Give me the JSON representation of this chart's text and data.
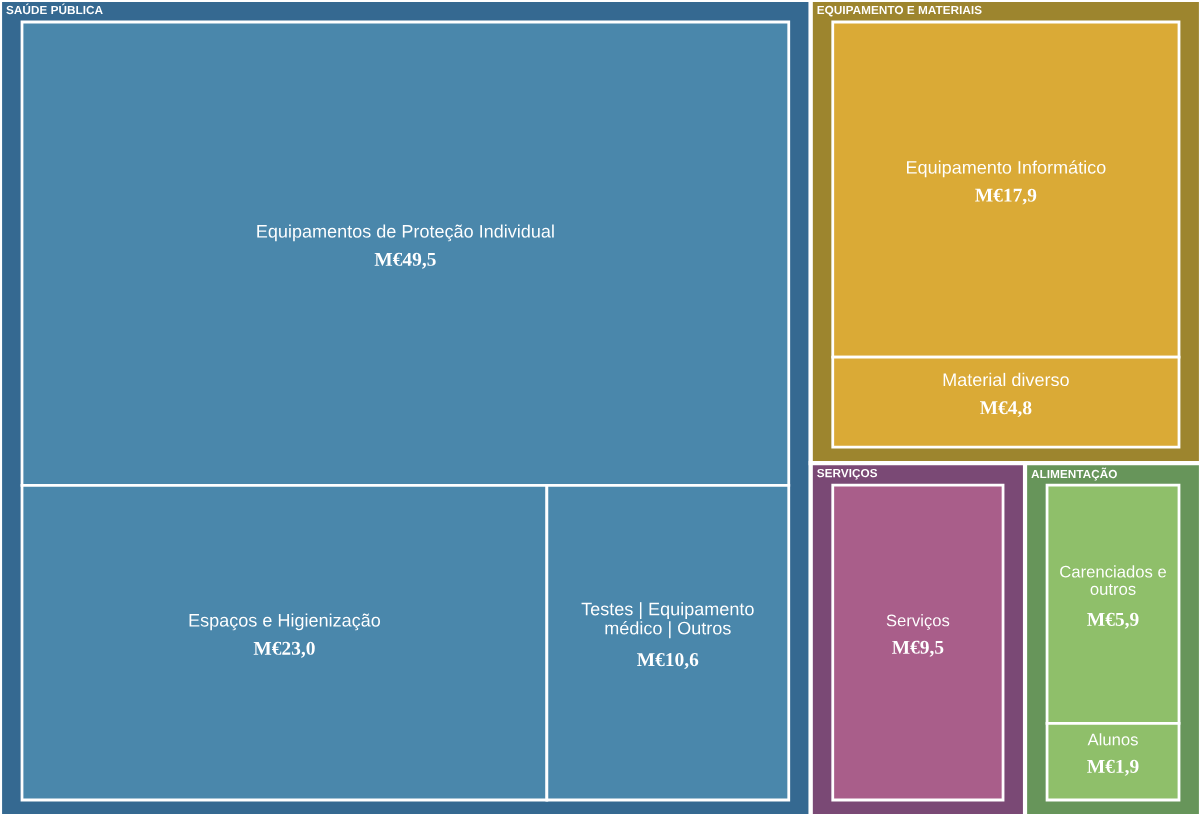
{
  "chart_data": {
    "type": "other",
    "categories": [
      "Equipamentos de Proteção Individual",
      "Espaços e Higienização",
      "Testes | Equipamento médico | Outros",
      "Equipamento Informático",
      "Material diverso",
      "Serviços",
      "Carenciados e outros",
      "Alunos"
    ],
    "series": [
      {
        "name": "SAÚDE PÚBLICA",
        "color": "#4a87ab",
        "values": [
          49.5,
          23.0,
          10.6,
          null,
          null,
          null,
          null,
          null
        ],
        "value_labels": [
          "M€49,5",
          "M€23,0",
          "M€10,6",
          null,
          null,
          null,
          null,
          null
        ]
      },
      {
        "name": "EQUIPAMENTO E MATERIAIS",
        "color": "#daaa36",
        "values": [
          null,
          null,
          null,
          17.9,
          4.8,
          null,
          null,
          null
        ],
        "value_labels": [
          null,
          null,
          null,
          "M€17,9",
          "M€4,8",
          null,
          null,
          null
        ]
      },
      {
        "name": "SERVIÇOS",
        "color": "#a95e8a",
        "values": [
          null,
          null,
          null,
          null,
          null,
          9.5,
          null,
          null
        ],
        "value_labels": [
          null,
          null,
          null,
          null,
          null,
          "M€9,5",
          null,
          null
        ]
      },
      {
        "name": "ALIMENTAÇÃO",
        "color": "#8fbf6a",
        "values": [
          null,
          null,
          null,
          null,
          null,
          null,
          5.9,
          1.9
        ],
        "value_labels": [
          null,
          null,
          null,
          null,
          null,
          null,
          "M€5,9",
          "M€1,9"
        ]
      }
    ]
  }
}
